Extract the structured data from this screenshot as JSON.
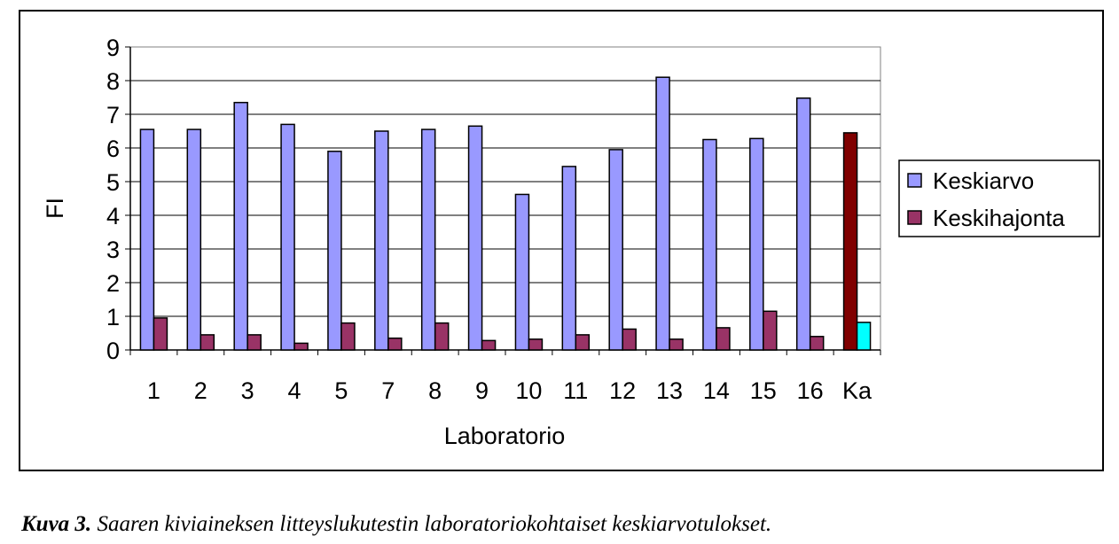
{
  "chart_data": {
    "type": "bar",
    "xlabel": "Laboratorio",
    "ylabel": "FI",
    "ylim": [
      0,
      9
    ],
    "yticks": [
      0,
      1,
      2,
      3,
      4,
      5,
      6,
      7,
      8,
      9
    ],
    "grid": true,
    "legend_position": "right",
    "categories": [
      "1",
      "2",
      "3",
      "4",
      "5",
      "7",
      "8",
      "9",
      "10",
      "11",
      "12",
      "13",
      "14",
      "15",
      "16",
      "Ka"
    ],
    "series": [
      {
        "name": "Keskiarvo",
        "color": "#9999ff",
        "highlight_color": "#800000",
        "values": [
          6.55,
          6.55,
          7.35,
          6.7,
          5.9,
          6.5,
          6.55,
          6.65,
          4.62,
          5.45,
          5.95,
          8.1,
          6.25,
          6.28,
          7.48,
          6.45
        ]
      },
      {
        "name": "Keskihajonta",
        "color": "#993366",
        "highlight_color": "#00ffff",
        "values": [
          0.95,
          0.45,
          0.45,
          0.2,
          0.8,
          0.35,
          0.8,
          0.28,
          0.32,
          0.45,
          0.62,
          0.32,
          0.66,
          1.15,
          0.4,
          0.82
        ]
      }
    ],
    "highlighted_category": "Ka"
  },
  "caption": {
    "label": "Kuva 3.",
    "text": " Saaren kiviaineksen litteyslukutestin laboratoriokohtaiset keskiarvotulokset."
  }
}
